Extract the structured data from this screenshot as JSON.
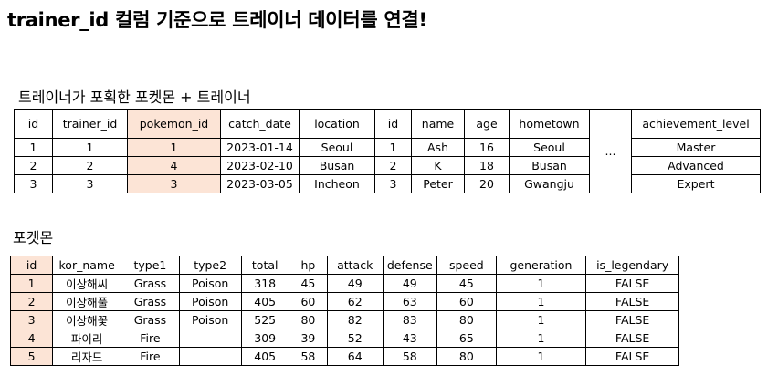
{
  "heading": "trainer_id 컬럼 기준으로 트레이너 데이터를 연결!",
  "joined_table": {
    "caption": "트레이너가 포획한 포켓몬 + 트레이너",
    "headers": [
      "id",
      "trainer_id",
      "pokemon_id",
      "catch_date",
      "location",
      "id",
      "name",
      "age",
      "hometown",
      "...",
      "achievement_level"
    ],
    "ellipsis": "...",
    "rows": [
      [
        "1",
        "1",
        "1",
        "2023-01-14",
        "Seoul",
        "1",
        "Ash",
        "16",
        "Seoul",
        "Master"
      ],
      [
        "2",
        "2",
        "4",
        "2023-02-10",
        "Busan",
        "2",
        "K",
        "18",
        "Busan",
        "Advanced"
      ],
      [
        "3",
        "3",
        "3",
        "2023-03-05",
        "Incheon",
        "3",
        "Peter",
        "20",
        "Gwangju",
        "Expert"
      ]
    ],
    "highlight_color": "#fce4d6"
  },
  "pokemon_table": {
    "caption": "포켓몬",
    "headers": [
      "id",
      "kor_name",
      "type1",
      "type2",
      "total",
      "hp",
      "attack",
      "defense",
      "speed",
      "generation",
      "is_legendary"
    ],
    "rows": [
      [
        "1",
        "이상해씨",
        "Grass",
        "Poison",
        "318",
        "45",
        "49",
        "49",
        "45",
        "1",
        "FALSE"
      ],
      [
        "2",
        "이상해풀",
        "Grass",
        "Poison",
        "405",
        "60",
        "62",
        "63",
        "60",
        "1",
        "FALSE"
      ],
      [
        "3",
        "이상해꽃",
        "Grass",
        "Poison",
        "525",
        "80",
        "82",
        "83",
        "80",
        "1",
        "FALSE"
      ],
      [
        "4",
        "파이리",
        "Fire",
        "",
        "309",
        "39",
        "52",
        "43",
        "65",
        "1",
        "FALSE"
      ],
      [
        "5",
        "리자드",
        "Fire",
        "",
        "405",
        "58",
        "64",
        "58",
        "80",
        "1",
        "FALSE"
      ]
    ],
    "highlight_color": "#fce4d6"
  }
}
